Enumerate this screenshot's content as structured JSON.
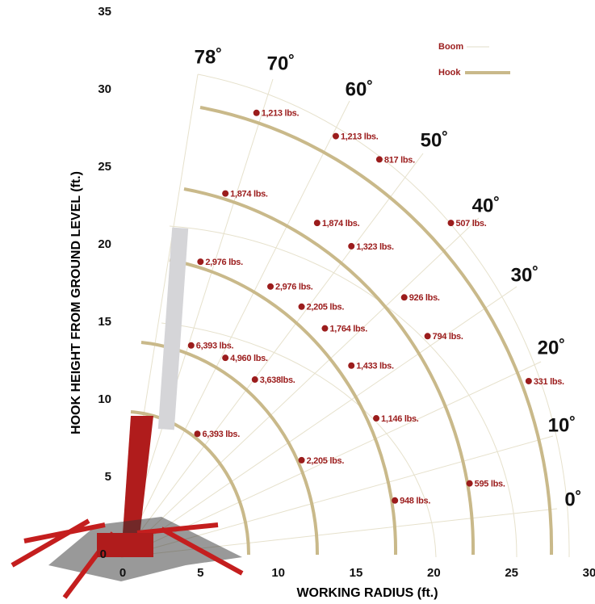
{
  "chart_data": {
    "type": "scatter",
    "xlabel": "WORKING RADIUS (ft.)",
    "ylabel": "HOOK HEIGHT FROM GROUND LEVEL (ft.)",
    "xlim": [
      0,
      30
    ],
    "xticks": [
      0,
      5,
      10,
      15,
      20,
      25,
      30
    ],
    "ylim": [
      0,
      35
    ],
    "yticks": [
      0,
      5,
      10,
      15,
      20,
      25,
      30,
      35
    ],
    "color": "#9b1c1c",
    "legend": [
      "Boom",
      "Hook"
    ],
    "boom_angles": [
      "78˚",
      "70˚",
      "60˚",
      "50˚",
      "40˚",
      "30˚",
      "20˚",
      "10˚",
      "0˚"
    ],
    "x": [
      8.6,
      13.7,
      16.5,
      21.1,
      26.1,
      6.6,
      12.5,
      14.7,
      18.1,
      19.6,
      22.3,
      5.0,
      9.5,
      11.5,
      13.0,
      14.7,
      16.3,
      17.5,
      4.4,
      6.6,
      8.5,
      11.5,
      4.8
    ],
    "values": [
      28.5,
      27.0,
      25.5,
      21.4,
      11.2,
      23.3,
      21.4,
      19.9,
      16.6,
      14.1,
      4.6,
      18.9,
      17.3,
      16.0,
      14.6,
      12.2,
      8.8,
      3.5,
      13.5,
      12.7,
      11.3,
      6.1,
      7.8
    ],
    "labels": [
      "1,213 lbs.",
      "1,213 lbs.",
      "817 lbs.",
      "507 lbs.",
      "331 lbs.",
      "1,874 lbs.",
      "1,874 lbs.",
      "1,323 lbs.",
      "926 lbs.",
      "794 lbs.",
      "595 lbs.",
      "2,976 lbs.",
      "2,976 lbs.",
      "2,205 lbs.",
      "1,764 lbs.",
      "1,433 lbs.",
      "1,146 lbs.",
      "948 lbs.",
      "6,393 lbs.",
      "4,960 lbs.",
      "3,638lbs.",
      "2,205 lbs.",
      "6,393 lbs."
    ]
  }
}
